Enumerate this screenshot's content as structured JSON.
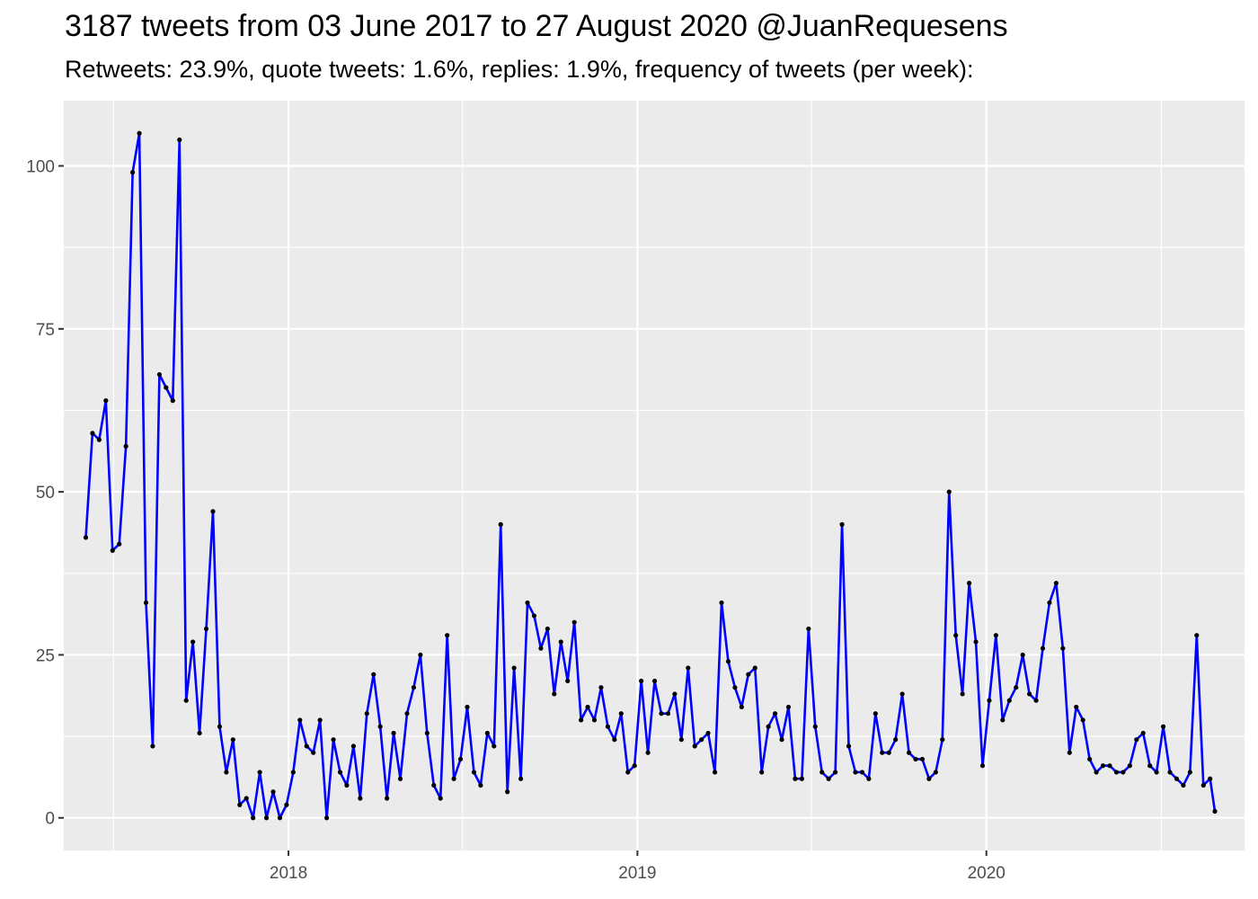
{
  "chart_data": {
    "type": "line",
    "title": "3187 tweets from 03 June 2017 to 27 August 2020 @JuanRequesens",
    "subtitle": "Retweets: 23.9%, quote tweets: 1.6%, replies: 1.9%, frequency of tweets (per week):",
    "xlabel": "",
    "ylabel": "",
    "x_ticks": [
      "2018",
      "2019",
      "2020"
    ],
    "y_ticks": [
      "0",
      "25",
      "50",
      "75",
      "100"
    ],
    "ylim": [
      -5,
      110
    ],
    "xlim": [
      "2017-05-11",
      "2020-09-27"
    ],
    "grid": true,
    "line_color": "#0000ff",
    "point_color": "#000000",
    "panel_color": "#ebebeb",
    "series": [
      {
        "x": [
          "2017-06-03",
          "2017-06-10",
          "2017-06-17",
          "2017-06-24",
          "2017-07-01",
          "2017-07-08",
          "2017-07-15",
          "2017-07-22",
          "2017-07-29",
          "2017-08-05",
          "2017-08-12",
          "2017-08-19",
          "2017-08-26",
          "2017-09-02",
          "2017-09-09",
          "2017-09-16",
          "2017-09-23",
          "2017-09-30",
          "2017-10-07",
          "2017-10-14",
          "2017-10-21",
          "2017-10-28",
          "2017-11-04",
          "2017-11-11",
          "2017-11-18",
          "2017-11-25",
          "2017-12-02",
          "2017-12-09",
          "2017-12-16",
          "2017-12-23",
          "2017-12-30",
          "2018-01-06",
          "2018-01-13",
          "2018-01-20",
          "2018-01-27",
          "2018-02-03",
          "2018-02-10",
          "2018-02-17",
          "2018-02-24",
          "2018-03-03",
          "2018-03-10",
          "2018-03-17",
          "2018-03-24",
          "2018-03-31",
          "2018-04-07",
          "2018-04-14",
          "2018-04-21",
          "2018-04-28",
          "2018-05-05",
          "2018-05-12",
          "2018-05-19",
          "2018-05-26",
          "2018-06-02",
          "2018-06-09",
          "2018-06-16",
          "2018-06-23",
          "2018-06-30",
          "2018-07-07",
          "2018-07-14",
          "2018-07-21",
          "2018-07-28",
          "2018-08-04",
          "2018-08-11",
          "2018-08-18",
          "2018-08-25",
          "2018-09-01",
          "2018-09-08",
          "2018-09-15",
          "2018-09-22",
          "2018-09-29",
          "2018-10-06",
          "2018-10-13",
          "2018-10-20",
          "2018-10-27",
          "2018-11-03",
          "2018-11-10",
          "2018-11-17",
          "2018-11-24",
          "2018-12-01",
          "2018-12-08",
          "2018-12-15",
          "2018-12-22",
          "2018-12-29",
          "2019-01-05",
          "2019-01-12",
          "2019-01-19",
          "2019-01-26",
          "2019-02-02",
          "2019-02-09",
          "2019-02-16",
          "2019-02-23",
          "2019-03-02",
          "2019-03-09",
          "2019-03-16",
          "2019-03-23",
          "2019-03-30",
          "2019-04-06",
          "2019-04-13",
          "2019-04-20",
          "2019-04-27",
          "2019-05-04",
          "2019-05-11",
          "2019-05-18",
          "2019-05-25",
          "2019-06-01",
          "2019-06-08",
          "2019-06-15",
          "2019-06-22",
          "2019-06-29",
          "2019-07-06",
          "2019-07-13",
          "2019-07-20",
          "2019-07-27",
          "2019-08-03",
          "2019-08-10",
          "2019-08-17",
          "2019-08-24",
          "2019-08-31",
          "2019-09-07",
          "2019-09-14",
          "2019-09-21",
          "2019-09-28",
          "2019-10-05",
          "2019-10-12",
          "2019-10-19",
          "2019-10-26",
          "2019-11-02",
          "2019-11-09",
          "2019-11-16",
          "2019-11-23",
          "2019-11-30",
          "2019-12-07",
          "2019-12-14",
          "2019-12-21",
          "2019-12-28",
          "2020-01-04",
          "2020-01-11",
          "2020-01-18",
          "2020-01-25",
          "2020-02-01",
          "2020-02-08",
          "2020-02-15",
          "2020-02-22",
          "2020-02-29",
          "2020-03-07",
          "2020-03-14",
          "2020-03-21",
          "2020-03-28",
          "2020-04-04",
          "2020-04-11",
          "2020-04-18",
          "2020-04-25",
          "2020-05-02",
          "2020-05-09",
          "2020-05-16",
          "2020-05-23",
          "2020-05-30",
          "2020-06-06",
          "2020-06-13",
          "2020-06-20",
          "2020-06-27",
          "2020-07-04",
          "2020-07-11",
          "2020-07-18",
          "2020-07-25",
          "2020-08-01",
          "2020-08-08",
          "2020-08-15",
          "2020-08-22",
          "2020-08-27"
        ],
        "y": [
          43,
          59,
          58,
          64,
          41,
          42,
          57,
          99,
          105,
          33,
          11,
          68,
          66,
          64,
          104,
          18,
          27,
          13,
          29,
          47,
          14,
          7,
          12,
          2,
          3,
          0,
          7,
          0,
          4,
          0,
          2,
          7,
          15,
          11,
          10,
          15,
          0,
          12,
          7,
          5,
          11,
          3,
          16,
          22,
          14,
          3,
          13,
          6,
          16,
          20,
          25,
          13,
          5,
          3,
          28,
          6,
          9,
          17,
          7,
          5,
          13,
          11,
          45,
          4,
          23,
          6,
          33,
          31,
          26,
          29,
          19,
          27,
          21,
          30,
          15,
          17,
          15,
          20,
          14,
          12,
          16,
          7,
          8,
          21,
          10,
          21,
          16,
          16,
          19,
          12,
          23,
          11,
          12,
          13,
          7,
          33,
          24,
          20,
          17,
          22,
          23,
          7,
          14,
          16,
          12,
          17,
          6,
          6,
          29,
          14,
          7,
          6,
          7,
          45,
          11,
          7,
          7,
          6,
          16,
          10,
          10,
          12,
          19,
          10,
          9,
          9,
          6,
          7,
          12,
          50,
          28,
          19,
          36,
          27,
          8,
          18,
          28,
          15,
          18,
          20,
          25,
          19,
          18,
          26,
          33,
          36,
          26,
          10,
          17,
          15,
          9,
          7,
          8,
          8,
          7,
          7,
          8,
          12,
          13,
          8,
          7,
          14,
          7,
          6,
          5,
          7,
          28,
          5,
          6,
          1
        ]
      }
    ]
  }
}
